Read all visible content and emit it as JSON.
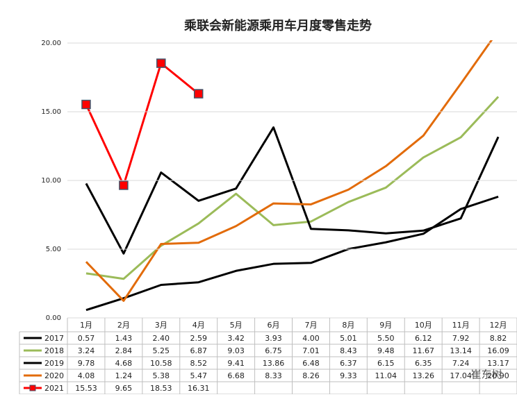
{
  "chart_data": {
    "type": "line",
    "title": "乘联会新能源乘用车月度零售走势",
    "categories": [
      "1月",
      "2月",
      "3月",
      "4月",
      "5月",
      "6月",
      "7月",
      "8月",
      "9月",
      "10月",
      "11月",
      "12月"
    ],
    "ylim": [
      0,
      20
    ],
    "yticks": [
      {
        "value": 0,
        "label": "0.00"
      },
      {
        "value": 5,
        "label": "5.00"
      },
      {
        "value": 10,
        "label": "10.00"
      },
      {
        "value": 15,
        "label": "15.00"
      },
      {
        "value": 20,
        "label": "20.00"
      }
    ],
    "grid": true,
    "watermark": "崔东树",
    "series": [
      {
        "name": "2017",
        "color": "#000000",
        "values": [
          0.57,
          1.43,
          2.4,
          2.59,
          3.42,
          3.93,
          4.0,
          5.01,
          5.5,
          6.12,
          7.92,
          8.82
        ],
        "value_labels": [
          "0.57",
          "1.43",
          "2.40",
          "2.59",
          "3.42",
          "3.93",
          "4.00",
          "5.01",
          "5.50",
          "6.12",
          "7.92",
          "8.82"
        ]
      },
      {
        "name": "2018",
        "color": "#9bbb59",
        "values": [
          3.24,
          2.84,
          5.25,
          6.87,
          9.03,
          6.75,
          7.01,
          8.43,
          9.48,
          11.67,
          13.14,
          16.09
        ],
        "value_labels": [
          "3.24",
          "2.84",
          "5.25",
          "6.87",
          "9.03",
          "6.75",
          "7.01",
          "8.43",
          "9.48",
          "11.67",
          "13.14",
          "16.09"
        ]
      },
      {
        "name": "2019",
        "color": "#000000",
        "values": [
          9.78,
          4.68,
          10.58,
          8.52,
          9.41,
          13.86,
          6.48,
          6.37,
          6.15,
          6.35,
          7.24,
          13.17
        ],
        "value_labels": [
          "9.78",
          "4.68",
          "10.58",
          "8.52",
          "9.41",
          "13.86",
          "6.48",
          "6.37",
          "6.15",
          "6.35",
          "7.24",
          "13.17"
        ]
      },
      {
        "name": "2020",
        "color": "#e26b0a",
        "values": [
          4.08,
          1.24,
          5.38,
          5.47,
          6.68,
          8.33,
          8.26,
          9.33,
          11.04,
          13.26,
          17.04,
          20.9
        ],
        "value_labels": [
          "4.08",
          "1.24",
          "5.38",
          "5.47",
          "6.68",
          "8.33",
          "8.26",
          "9.33",
          "11.04",
          "13.26",
          "17.04",
          "20.90"
        ]
      },
      {
        "name": "2021",
        "color": "#ff0000",
        "marker": "square",
        "values": [
          15.53,
          9.65,
          18.53,
          16.31,
          null,
          null,
          null,
          null,
          null,
          null,
          null,
          null
        ],
        "value_labels": [
          "15.53",
          "9.65",
          "18.53",
          "16.31",
          null,
          null,
          null,
          null,
          null,
          null,
          null,
          null
        ]
      }
    ]
  }
}
